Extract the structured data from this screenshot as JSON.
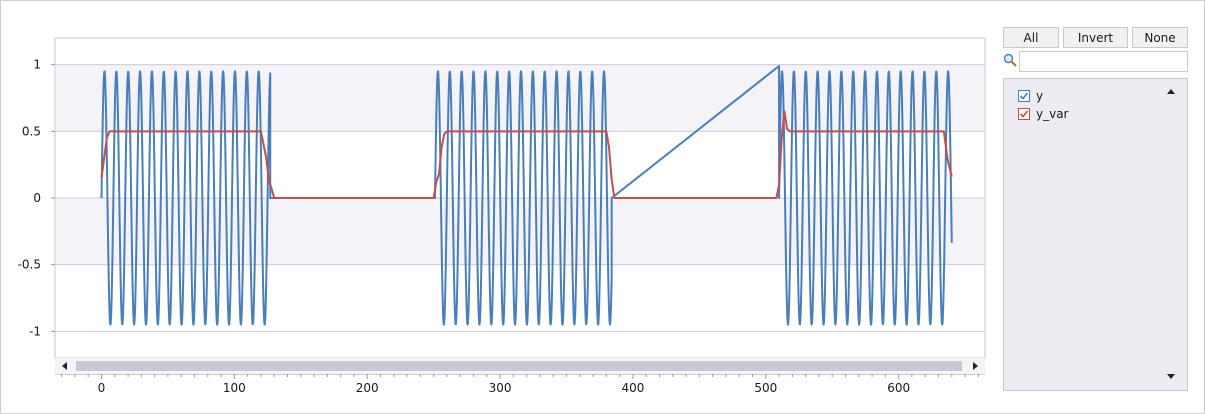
{
  "toolbar": {
    "all_label": "All",
    "invert_label": "Invert",
    "none_label": "None"
  },
  "search": {
    "placeholder": "",
    "value": ""
  },
  "colors": {
    "y": "#4a7ebb",
    "y_var": "#c0504d",
    "band": "#f3f3f8",
    "gridline": "#c9cbe0"
  },
  "chart_data": {
    "type": "line",
    "title": "",
    "xlabel": "",
    "ylabel": "",
    "xlim": [
      -35,
      665
    ],
    "ylim": [
      -1.2,
      1.2
    ],
    "xticks": [
      0,
      100,
      200,
      300,
      400,
      500,
      600
    ],
    "xtick_labels": [
      "0",
      "100",
      "200",
      "300",
      "400",
      "500",
      "600"
    ],
    "yticks": [
      1,
      0.5,
      0,
      -0.5,
      -1
    ],
    "ytick_labels": [
      "1",
      "0.5",
      "0",
      "-0.5",
      "-1"
    ],
    "grid": true,
    "legend": "right-panel",
    "series": [
      {
        "name": "y",
        "segments": [
          {
            "kind": "sine",
            "x_start": 0,
            "x_end": 127,
            "amplitude": 0.95,
            "period": 8.93,
            "start_value": 0
          },
          {
            "kind": "flat",
            "x_start": 127,
            "x_end": 250,
            "value": 0
          },
          {
            "kind": "sine",
            "x_start": 251,
            "x_end": 384,
            "amplitude": 0.95,
            "period": 8.93,
            "start_value": 0
          },
          {
            "kind": "ramp",
            "x_start": 384,
            "x_end": 510,
            "from": 0,
            "to": 0.99
          },
          {
            "kind": "sine",
            "x_start": 510,
            "x_end": 640,
            "amplitude": 0.95,
            "period": 8.93,
            "start_value": 0
          }
        ]
      },
      {
        "name": "y_var",
        "points": [
          [
            0,
            0.15
          ],
          [
            2,
            0.3
          ],
          [
            4,
            0.45
          ],
          [
            6,
            0.5
          ],
          [
            120,
            0.5
          ],
          [
            122,
            0.4
          ],
          [
            124,
            0.3
          ],
          [
            126,
            0.13
          ],
          [
            128,
            0.07
          ],
          [
            130,
            0.0
          ],
          [
            250,
            0.0
          ],
          [
            252,
            0.12
          ],
          [
            254,
            0.18
          ],
          [
            256,
            0.38
          ],
          [
            258,
            0.48
          ],
          [
            260,
            0.5
          ],
          [
            380,
            0.5
          ],
          [
            382,
            0.38
          ],
          [
            384,
            0.14
          ],
          [
            386,
            0.0
          ],
          [
            390,
            0.0
          ],
          [
            508,
            0.0
          ],
          [
            510,
            0.1
          ],
          [
            512,
            0.45
          ],
          [
            514,
            0.65
          ],
          [
            516,
            0.52
          ],
          [
            518,
            0.5
          ],
          [
            634,
            0.5
          ],
          [
            637,
            0.28
          ],
          [
            640,
            0.16
          ]
        ]
      }
    ]
  },
  "legend_items": [
    {
      "name": "y",
      "checked": true
    },
    {
      "name": "y_var",
      "checked": true
    }
  ]
}
